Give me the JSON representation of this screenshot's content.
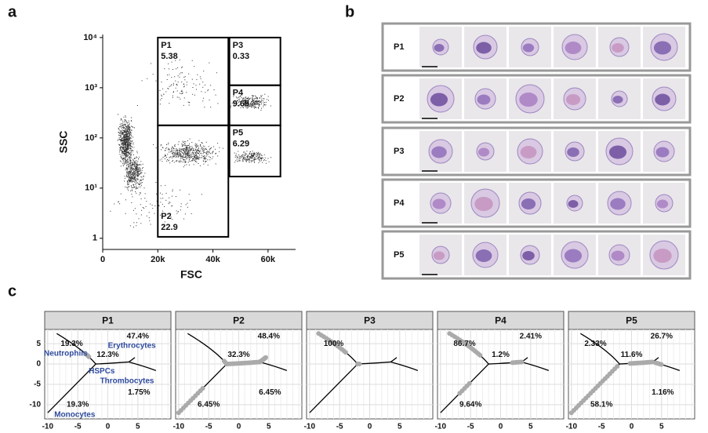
{
  "panel_labels": [
    "a",
    "b",
    "c"
  ],
  "chart_data": [
    {
      "type": "gates",
      "xlabel": "FSC",
      "ylabel": "SSC",
      "xlim": [
        0,
        70000
      ],
      "xticks": [
        0,
        {
          "value": 20000,
          "label": "20k"
        },
        {
          "value": 40000,
          "label": "40k"
        },
        {
          "value": 60000,
          "label": "60k"
        }
      ],
      "ylog": true,
      "ylim": [
        0.6,
        11500
      ],
      "yticks": [
        1,
        {
          "value": 10,
          "label": "10¹"
        },
        {
          "value": 100,
          "label": "10²"
        },
        {
          "value": 1000,
          "label": "10³"
        },
        {
          "value": 10000,
          "label": "10⁴"
        }
      ],
      "gates": [
        {
          "name": "P1",
          "value": 5.38,
          "x": [
            20000,
            45600
          ],
          "y": [
            178,
            10000
          ]
        },
        {
          "name": "P2",
          "value": 22.9,
          "x": [
            20000,
            45600
          ],
          "y": [
            1.07,
            178
          ]
        },
        {
          "name": "P3",
          "value": 0.33,
          "x": [
            46000,
            64500
          ],
          "y": [
            1120,
            10000
          ]
        },
        {
          "name": "P4",
          "value": 9.65,
          "x": [
            46000,
            64500
          ],
          "y": [
            178,
            1120
          ]
        },
        {
          "name": "P5",
          "value": 6.29,
          "x": [
            46000,
            64500
          ],
          "y": [
            17,
            178
          ]
        }
      ]
    },
    {
      "type": "trajectory",
      "xlim": [
        -10.5,
        10.5
      ],
      "xticks": [
        -10,
        -5,
        0,
        5
      ],
      "ylim": [
        -13.5,
        8.5
      ],
      "yticks": [
        -10,
        -5,
        0,
        5
      ],
      "branches": [
        "Neutrophils",
        "Erythrocytes",
        "HSPCs",
        "Thrombocytes",
        "Monocytes"
      ],
      "facets": [
        {
          "title": "P1",
          "values": [
            19.3,
            47.4,
            12.3,
            1.75,
            19.3
          ],
          "value_labels": [
            "19.3%",
            "47.4%",
            "12.3%",
            "1.75%",
            "19.3%"
          ]
        },
        {
          "title": "P2",
          "values": [
            null,
            48.4,
            32.3,
            6.45,
            6.45
          ],
          "value_labels": [
            null,
            "48.4%",
            "32.3%",
            "6.45%",
            "6.45%"
          ]
        },
        {
          "title": "P3",
          "values": [
            100,
            null,
            null,
            null,
            null
          ],
          "value_labels": [
            "100%",
            null,
            null,
            null,
            null
          ]
        },
        {
          "title": "P4",
          "values": [
            86.7,
            2.41,
            1.2,
            null,
            9.64
          ],
          "value_labels": [
            "86.7%",
            "2.41%",
            "1.2%",
            null,
            "9.64%"
          ]
        },
        {
          "title": "P5",
          "values": [
            2.33,
            26.7,
            11.6,
            1.16,
            58.1
          ],
          "value_labels": [
            "2.33%",
            "26.7%",
            "11.6%",
            "1.16%",
            "58.1%"
          ]
        }
      ]
    }
  ],
  "micrographs": {
    "rows": [
      "P1",
      "P2",
      "P3",
      "P4",
      "P5"
    ]
  }
}
